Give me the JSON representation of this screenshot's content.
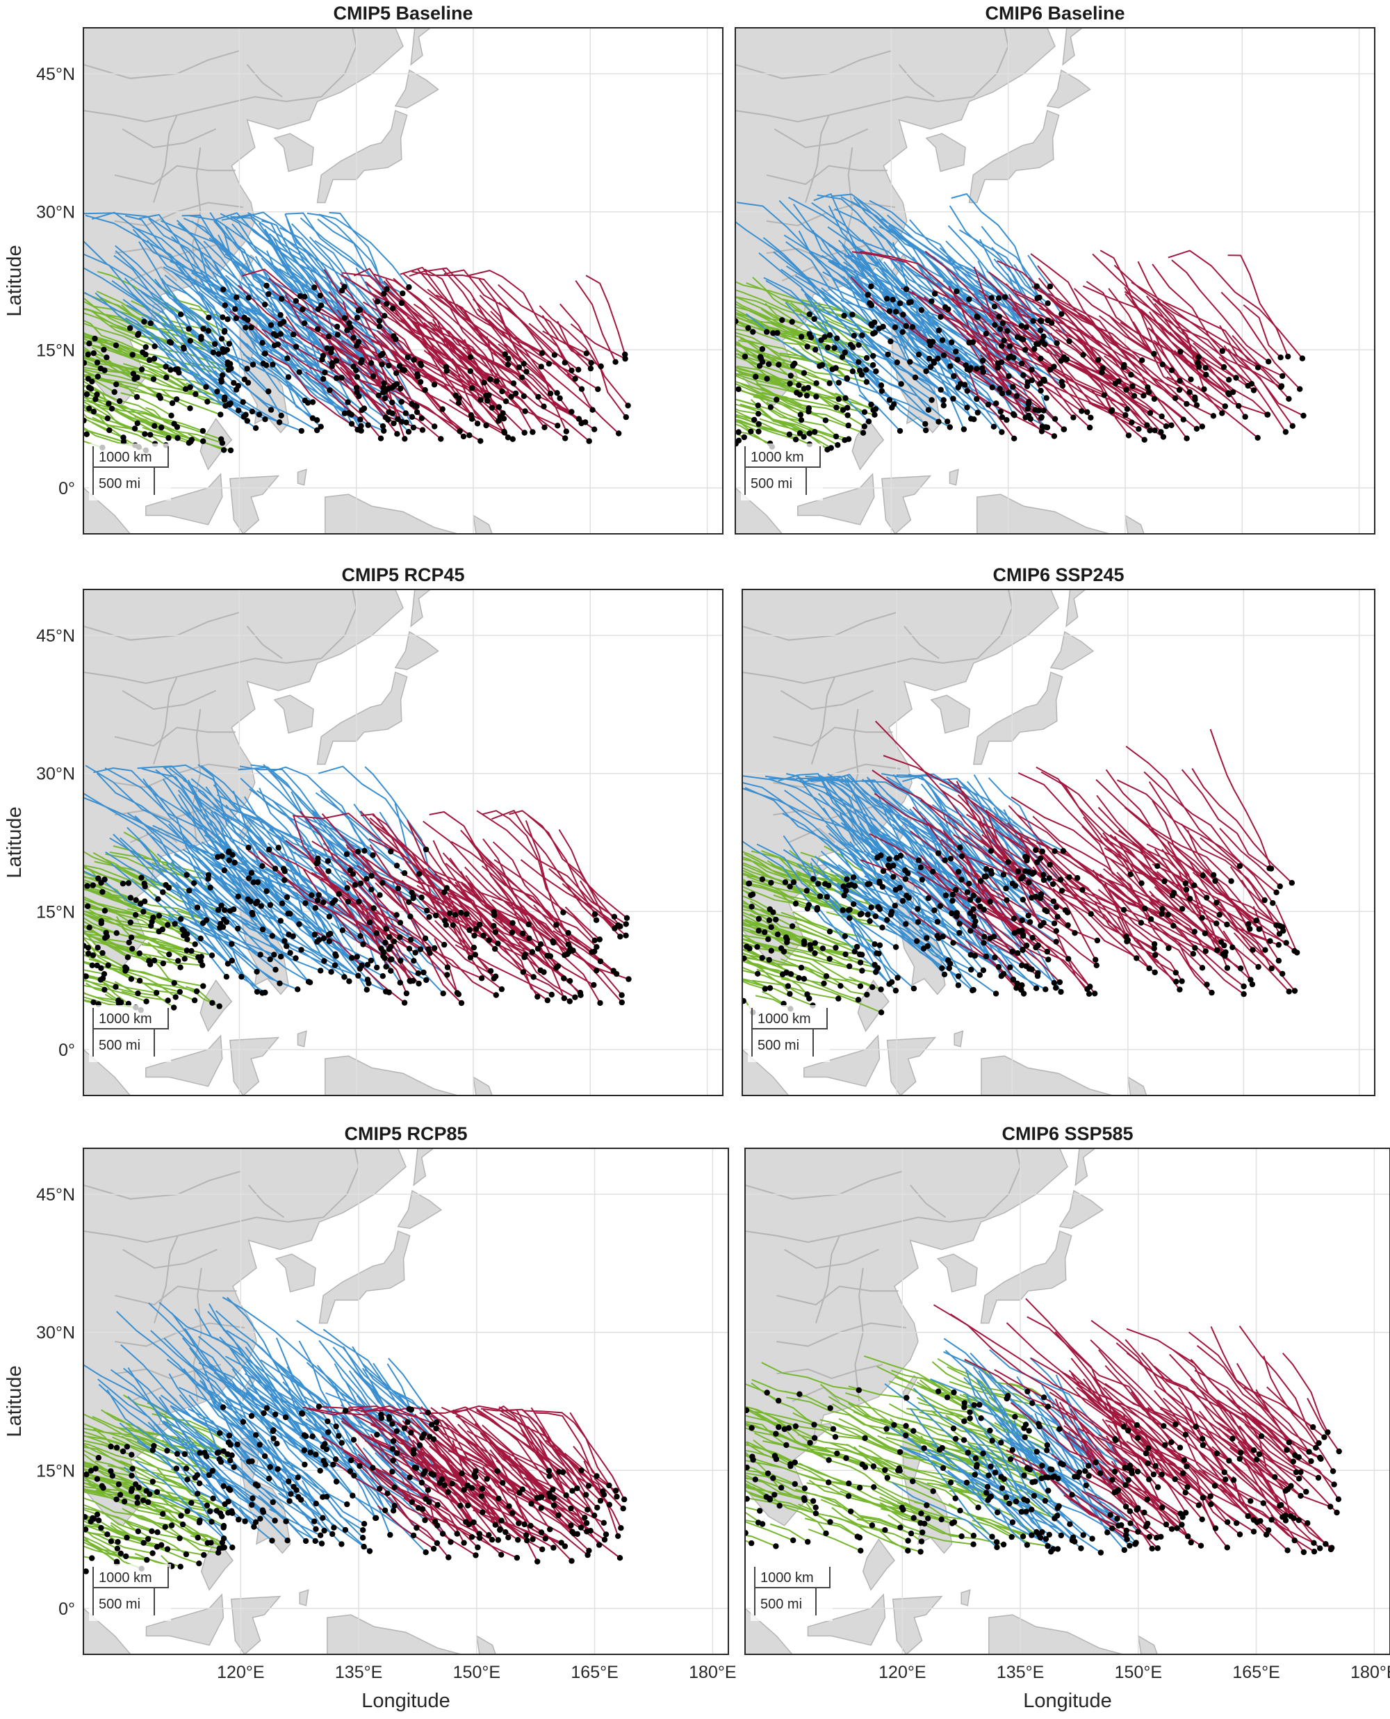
{
  "figure": {
    "colors": {
      "land": "#d9d9d9",
      "border": "#b4b4b4",
      "ocean": "#ffffff",
      "grid": "#e0e0e0",
      "frame": "#262626",
      "track_green": "#77b72f",
      "track_blue": "#3a8fd0",
      "track_red": "#a3173e",
      "genesis_dot": "#000000"
    },
    "map_extent": {
      "lon": [
        100,
        182
      ],
      "lat": [
        -5,
        50
      ]
    },
    "lat_ticks": [
      {
        "value": 45,
        "label": "45°N"
      },
      {
        "value": 30,
        "label": "30°N"
      },
      {
        "value": 15,
        "label": "15°N"
      },
      {
        "value": 0,
        "label": "0°"
      }
    ],
    "lon_ticks": [
      {
        "value": 120,
        "label": "120°E"
      },
      {
        "value": 135,
        "label": "135°E"
      },
      {
        "value": 150,
        "label": "150°E"
      },
      {
        "value": 165,
        "label": "165°E"
      },
      {
        "value": 180,
        "label": "180°E"
      }
    ],
    "ylabel": "Latitude",
    "xlabel": "Longitude",
    "scale_bar": {
      "km_label": "1000 km",
      "mi_label": "500 mi"
    },
    "panels": [
      {
        "title": "CMIP5 Baseline",
        "cluster_lon": {
          "green": [
            100,
            119
          ],
          "blue": [
            117,
            143
          ],
          "red": [
            135,
            170
          ]
        },
        "max_lat_blue": 30,
        "max_lat_red": 24
      },
      {
        "title": "CMIP6 Baseline",
        "cluster_lon": {
          "green": [
            100,
            118
          ],
          "blue": [
            117,
            143
          ],
          "red": [
            135,
            173
          ]
        },
        "max_lat_blue": 32,
        "max_lat_red": 26
      },
      {
        "title": "CMIP5 RCP45",
        "cluster_lon": {
          "green": [
            100,
            118
          ],
          "blue": [
            117,
            147
          ],
          "red": [
            138,
            170
          ]
        },
        "max_lat_blue": 31,
        "max_lat_red": 26
      },
      {
        "title": "CMIP6 SSP245",
        "cluster_lon": {
          "green": [
            100,
            119
          ],
          "blue": [
            117,
            142
          ],
          "red": [
            135,
            172
          ]
        },
        "max_lat_blue": 30,
        "max_lat_red": 36
      },
      {
        "title": "CMIP5 RCP85",
        "cluster_lon": {
          "green": [
            100,
            119
          ],
          "blue": [
            117,
            146
          ],
          "red": [
            143,
            169
          ]
        },
        "max_lat_blue": 34,
        "max_lat_red": 22
      },
      {
        "title": "CMIP6 SSP585",
        "cluster_lon": {
          "green": [
            100,
            140
          ],
          "blue": [
            132,
            150
          ],
          "red": [
            147,
            176
          ]
        },
        "max_lat_blue": 30,
        "max_lat_red": 35
      }
    ]
  }
}
